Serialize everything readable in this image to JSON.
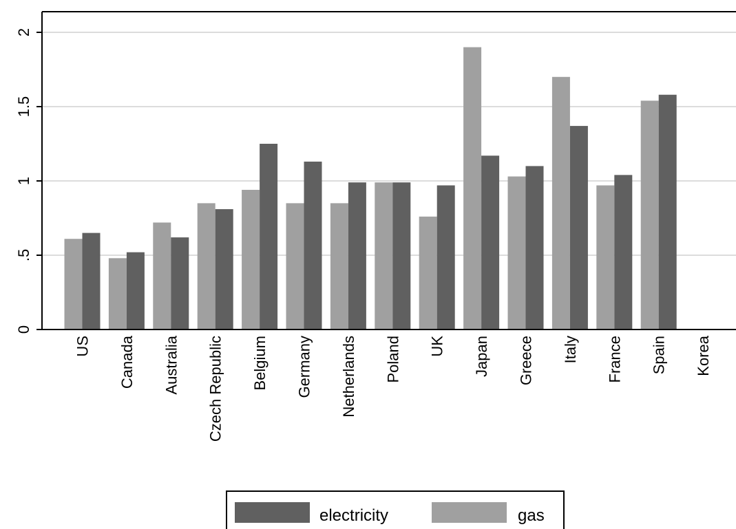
{
  "chart_data": {
    "type": "bar",
    "title": "",
    "xlabel": "",
    "ylabel": "",
    "ylim": [
      0,
      2
    ],
    "yticks": [
      {
        "value": 0,
        "label": "0"
      },
      {
        "value": 0.5,
        "label": ".5"
      },
      {
        "value": 1,
        "label": "1"
      },
      {
        "value": 1.5,
        "label": "1.5"
      },
      {
        "value": 2,
        "label": "2"
      }
    ],
    "grid": true,
    "legend_position": "bottom",
    "categories": [
      "US",
      "Canada",
      "Australia",
      "Czech Republic",
      "Belgium",
      "Germany",
      "Netherlands",
      "Poland",
      "UK",
      "Japan",
      "Greece",
      "Italy",
      "France",
      "Spain",
      "Korea"
    ],
    "series": [
      {
        "name": "gas",
        "color": "#a0a0a0",
        "values": [
          0.61,
          0.48,
          0.72,
          0.85,
          0.94,
          0.85,
          0.85,
          0.99,
          0.76,
          1.9,
          1.03,
          1.7,
          0.97,
          1.54,
          null
        ]
      },
      {
        "name": "electricity",
        "color": "#606060",
        "values": [
          0.65,
          0.52,
          0.62,
          0.81,
          1.25,
          1.13,
          0.99,
          0.99,
          0.97,
          1.17,
          1.1,
          1.37,
          1.04,
          1.58,
          null
        ]
      }
    ],
    "legend_order": [
      "electricity",
      "gas"
    ]
  }
}
